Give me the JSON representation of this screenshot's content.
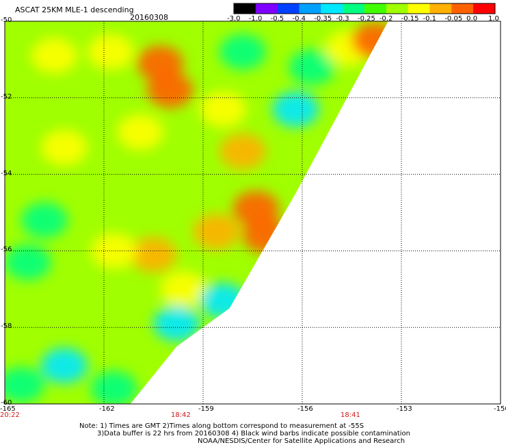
{
  "header": {
    "title": "ASCAT 25KM MLE-1 descending",
    "date": "20160308"
  },
  "colorbar": {
    "labels": [
      "-3.0",
      "-1.0",
      "-0.5",
      "-0.4",
      "-0.35",
      "-0.3",
      "-0.25",
      "-0.2",
      "-0.15",
      "-0.1",
      "-0.05",
      "0.0",
      "1.0"
    ],
    "colors": [
      "#000000",
      "#7f00ff",
      "#0040ff",
      "#00a0ff",
      "#00e8ff",
      "#00ff80",
      "#40ff00",
      "#a0ff00",
      "#ffff00",
      "#ffb000",
      "#ff6000",
      "#ff0000"
    ]
  },
  "axes": {
    "x_ticks": [
      "-165",
      "-162",
      "-159",
      "-156",
      "-153",
      "-150"
    ],
    "y_ticks": [
      "-50",
      "-52",
      "-54",
      "-56",
      "-58",
      "-60"
    ]
  },
  "times": {
    "left": "20:22",
    "mid": "18:42",
    "right": "18:41"
  },
  "notes": {
    "line1": "Note: 1) Times are GMT 2)Times along bottom correspond to measurement at -55S",
    "line2": "3)Data buffer is 22 hrs from 20160308 4) Black wind barbs indicate possible contamination",
    "line3": "NOAA/NESDIS/Center for Satellite Applications and Research"
  },
  "chart_data": {
    "type": "heatmap",
    "title": "ASCAT 25KM MLE-1 descending 20160308",
    "x_range": [
      -165,
      -150
    ],
    "y_range": [
      -60,
      -50
    ],
    "x_ticks": [
      -165,
      -162,
      -159,
      -156,
      -153,
      -150
    ],
    "y_ticks": [
      -50,
      -52,
      -54,
      -56,
      -58,
      -60
    ],
    "grid": true,
    "color_scale": {
      "boundaries": [
        -3.0,
        -1.0,
        -0.5,
        -0.4,
        -0.35,
        -0.3,
        -0.25,
        -0.2,
        -0.15,
        -0.1,
        -0.05,
        0.0,
        1.0
      ],
      "colors": [
        "#000000",
        "#7f00ff",
        "#0040ff",
        "#00a0ff",
        "#00e8ff",
        "#00ff80",
        "#40ff00",
        "#a0ff00",
        "#ffff00",
        "#ffb000",
        "#ff6000",
        "#ff0000"
      ]
    },
    "swath_edge": [
      [
        -153.4,
        -50
      ],
      [
        -156.2,
        -54.5
      ],
      [
        -158.2,
        -57.5
      ],
      [
        -159.8,
        -58.5
      ],
      [
        -161.2,
        -60
      ]
    ],
    "blobs": [
      {
        "lon": -163.5,
        "lat": -50.9,
        "value": -0.12
      },
      {
        "lon": -161.8,
        "lat": -50.8,
        "value": -0.15
      },
      {
        "lon": -160.3,
        "lat": -51.1,
        "value": -0.05
      },
      {
        "lon": -160.0,
        "lat": -51.8,
        "value": -0.05
      },
      {
        "lon": -160.9,
        "lat": -52.9,
        "value": -0.12
      },
      {
        "lon": -163.2,
        "lat": -53.3,
        "value": -0.12
      },
      {
        "lon": -158.4,
        "lat": -52.3,
        "value": -0.15
      },
      {
        "lon": -157.8,
        "lat": -53.4,
        "value": -0.1
      },
      {
        "lon": -157.4,
        "lat": -54.9,
        "value": -0.03
      },
      {
        "lon": -157.1,
        "lat": -55.6,
        "value": -0.02
      },
      {
        "lon": -158.6,
        "lat": -55.5,
        "value": -0.1
      },
      {
        "lon": -160.5,
        "lat": -56.1,
        "value": -0.06
      },
      {
        "lon": -161.7,
        "lat": -56.0,
        "value": -0.12
      },
      {
        "lon": -159.6,
        "lat": -57.0,
        "value": -0.15
      },
      {
        "lon": -163.8,
        "lat": -55.2,
        "value": -0.3
      },
      {
        "lon": -164.3,
        "lat": -56.3,
        "value": -0.3
      },
      {
        "lon": -163.2,
        "lat": -59.0,
        "value": -0.32
      },
      {
        "lon": -161.7,
        "lat": -59.6,
        "value": -0.3
      },
      {
        "lon": -157.8,
        "lat": -50.8,
        "value": -0.28
      },
      {
        "lon": -155.7,
        "lat": -51.2,
        "value": -0.3
      },
      {
        "lon": -156.2,
        "lat": -52.3,
        "value": -0.32
      },
      {
        "lon": -154.6,
        "lat": -50.7,
        "value": -0.15
      },
      {
        "lon": -153.8,
        "lat": -50.5,
        "value": -0.05
      },
      {
        "lon": -159.8,
        "lat": -57.9,
        "value": -0.32
      },
      {
        "lon": -158.4,
        "lat": -57.3,
        "value": -0.32
      },
      {
        "lon": -164.5,
        "lat": -59.5,
        "value": -0.28
      }
    ]
  }
}
